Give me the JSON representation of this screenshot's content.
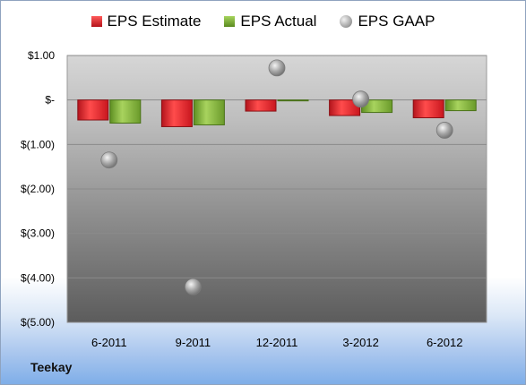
{
  "chart_data": {
    "type": "bar",
    "categories": [
      "6-2011",
      "9-2011",
      "12-2011",
      "3-2012",
      "6-2012"
    ],
    "series": [
      {
        "name": "EPS Estimate",
        "kind": "bar",
        "values": [
          -0.45,
          -0.6,
          -0.25,
          -0.35,
          -0.4
        ],
        "color": "#d9262a"
      },
      {
        "name": "EPS Actual",
        "kind": "bar",
        "values": [
          -0.52,
          -0.56,
          -0.02,
          -0.28,
          -0.24
        ],
        "color": "#77a832"
      },
      {
        "name": "EPS GAAP",
        "kind": "marker",
        "values": [
          -1.35,
          -4.2,
          0.72,
          0.02,
          -0.68
        ],
        "color": "#a6a6a6"
      }
    ],
    "yticks": [
      "$1.00",
      "$-",
      "$(1.00)",
      "$(2.00)",
      "$(3.00)",
      "$(4.00)",
      "$(5.00)"
    ],
    "ytick_values": [
      1,
      0,
      -1,
      -2,
      -3,
      -4,
      -5
    ],
    "ylim": [
      -5,
      1
    ],
    "grid": true,
    "legend_position": "top",
    "title": "",
    "xlabel": "",
    "ylabel": ""
  },
  "legend": {
    "estimate": "EPS Estimate",
    "actual": "EPS Actual",
    "gaap": "EPS GAAP"
  },
  "company": "Teekay"
}
